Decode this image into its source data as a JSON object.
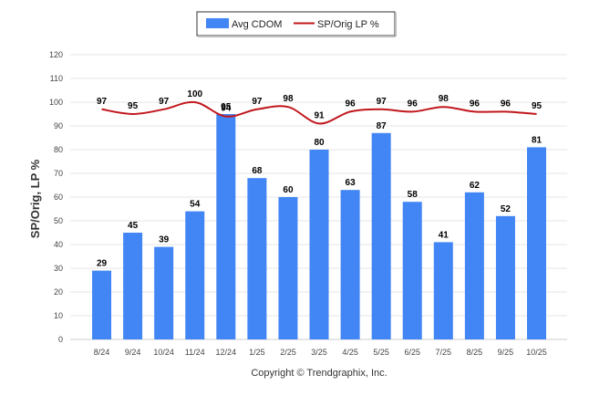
{
  "chart_data": {
    "type": "bar",
    "categories": [
      "8/24",
      "9/24",
      "10/24",
      "11/24",
      "12/24",
      "1/25",
      "2/25",
      "3/25",
      "4/25",
      "5/25",
      "6/25",
      "7/25",
      "8/25",
      "9/25",
      "10/25"
    ],
    "series": [
      {
        "name": "Avg CDOM",
        "type": "bar",
        "color": "#4285f4",
        "values": [
          29,
          45,
          39,
          54,
          95,
          68,
          60,
          80,
          63,
          87,
          58,
          41,
          62,
          52,
          81
        ]
      },
      {
        "name": "SP/Orig LP %",
        "type": "line",
        "color": "#c0171d",
        "values": [
          97,
          95,
          97,
          100,
          94,
          97,
          98,
          91,
          96,
          97,
          96,
          98,
          96,
          96,
          95
        ]
      }
    ],
    "ylabel": "SP/Orig, LP %",
    "xlabel": "",
    "ylim": [
      0,
      120
    ],
    "yticks": [
      0,
      10,
      20,
      30,
      40,
      50,
      60,
      70,
      80,
      90,
      100,
      110,
      120
    ],
    "grid": true,
    "legend_position": "top-center"
  },
  "credit": "Copyright © Trendgraphix, Inc."
}
